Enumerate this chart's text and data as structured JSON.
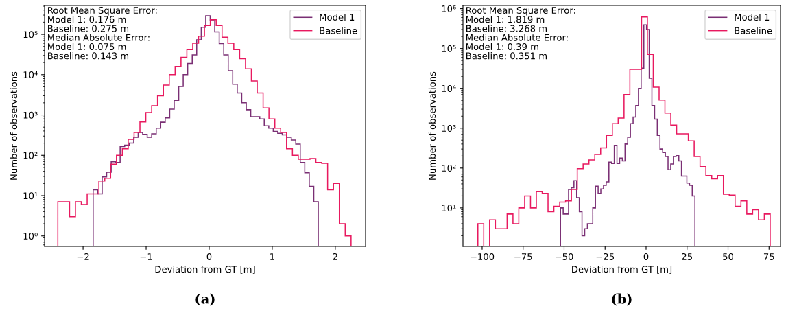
{
  "chart_data": [
    {
      "type": "histogram",
      "xlabel": "Deviation from GT [m]",
      "ylabel": "Number of observations",
      "log": "y",
      "legend": "top right",
      "grid": false,
      "bins": [
        -1.84,
        -1.769,
        -1.697,
        -1.626,
        -1.554,
        -1.483,
        -1.412,
        -1.34,
        -1.269,
        -1.197,
        -1.126,
        -1.055,
        -0.983,
        -0.912,
        -0.84,
        -0.769,
        -0.698,
        -0.626,
        -0.555,
        -0.483,
        -0.412,
        -0.341,
        -0.269,
        -0.198,
        -0.126,
        -0.055,
        0.016,
        0.088,
        0.159,
        0.231,
        0.302,
        0.373,
        0.445,
        0.516,
        0.588,
        0.659,
        0.73,
        0.802,
        0.873,
        0.945,
        1.016,
        1.087,
        1.159,
        1.23,
        1.302,
        1.373,
        1.444,
        1.516,
        1.587,
        1.659,
        1.73
      ],
      "xlim": [
        -2.61,
        2.48
      ],
      "xticks": [
        {
          "value": -2,
          "label": "−2"
        },
        {
          "value": -1,
          "label": "−1"
        },
        0,
        1,
        2
      ],
      "ylim": [
        0.55,
        520000
      ],
      "yticks": [
        {
          "value": 1,
          "label": "10⁰"
        },
        {
          "value": 10,
          "label": "10¹"
        },
        {
          "value": 100,
          "label": "10²"
        },
        {
          "value": 1000,
          "label": "10³"
        },
        {
          "value": 10000,
          "label": "10⁴"
        },
        {
          "value": 100000,
          "label": "10⁵"
        }
      ],
      "annotations": [
        "Root Mean Square Error:\nModel 1: 0.176 m\nBaseline: 0.275 m\nMedian Absolute Error:\nModel 1: 0.075 m\nBaseline: 0.143 m",
        "(a)"
      ],
      "series": [
        {
          "name": "Model 1",
          "color": "#7a2f74",
          "values": [
            14,
            11,
            29,
            38,
            69,
            66,
            165,
            178,
            200,
            280,
            370,
            330,
            280,
            340,
            470,
            660,
            850,
            1400,
            2300,
            5100,
            10000,
            19000,
            31000,
            73000,
            150000,
            290000,
            220000,
            115000,
            59000,
            31000,
            12500,
            5800,
            3500,
            2000,
            1350,
            910,
            910,
            800,
            540,
            470,
            390,
            350,
            320,
            280,
            240,
            190,
            66,
            37,
            17,
            7
          ]
        },
        {
          "name": "Baseline",
          "color": "#e8195f",
          "bins": [
            -2.4,
            -2.307,
            -2.214,
            -2.121,
            -2.028,
            -1.935,
            -1.842,
            -1.749,
            -1.656,
            -1.563,
            -1.47,
            -1.377,
            -1.284,
            -1.191,
            -1.098,
            -1.005,
            -0.912,
            -0.819,
            -0.726,
            -0.633,
            -0.54,
            -0.447,
            -0.354,
            -0.261,
            -0.168,
            -0.075,
            0.018,
            0.111,
            0.204,
            0.297,
            0.39,
            0.483,
            0.576,
            0.669,
            0.762,
            0.855,
            0.948,
            1.041,
            1.134,
            1.227,
            1.32,
            1.413,
            1.506,
            1.599,
            1.692,
            1.785,
            1.878,
            1.971,
            2.064,
            2.157,
            2.25
          ],
          "values": [
            7,
            7,
            3,
            7,
            6,
            11,
            11,
            23,
            27,
            60,
            100,
            145,
            250,
            370,
            670,
            1150,
            1700,
            3000,
            5500,
            10000,
            16000,
            27000,
            42000,
            60000,
            90000,
            165000,
            230000,
            165000,
            85000,
            60000,
            42000,
            25000,
            14000,
            7000,
            3500,
            1500,
            800,
            470,
            370,
            145,
            100,
            80,
            80,
            83,
            66,
            63,
            14,
            20,
            2,
            1
          ]
        }
      ]
    },
    {
      "type": "histogram",
      "xlabel": "Deviation from GT [m]",
      "ylabel": "Number of observations",
      "log": "y",
      "legend": "top right",
      "grid": false,
      "bins": [
        -52.2,
        -50.56,
        -48.92,
        -47.28,
        -45.64,
        -44.0,
        -42.36,
        -40.72,
        -39.08,
        -37.44,
        -35.8,
        -34.16,
        -32.52,
        -30.88,
        -29.24,
        -27.6,
        -25.96,
        -24.32,
        -22.68,
        -21.04,
        -19.4,
        -17.76,
        -16.12,
        -14.48,
        -12.84,
        -11.2,
        -9.56,
        -7.92,
        -6.28,
        -4.64,
        -3.0,
        -1.36,
        0.28,
        1.92,
        3.56,
        5.2,
        6.84,
        8.48,
        10.12,
        11.76,
        13.4,
        15.04,
        16.68,
        18.32,
        19.96,
        21.6,
        23.24,
        24.88,
        26.52,
        28.16,
        29.8
      ],
      "xlim": [
        -111.7,
        82.0
      ],
      "xticks": [
        {
          "value": -100,
          "label": "−100"
        },
        {
          "value": -75,
          "label": "−75"
        },
        {
          "value": -50,
          "label": "−50"
        },
        {
          "value": -25,
          "label": "−25"
        },
        0,
        25,
        50,
        75
      ],
      "ylim": [
        1.08,
        1200000
      ],
      "yticks": [
        {
          "value": 10,
          "label": "10¹"
        },
        {
          "value": 100,
          "label": "10²"
        },
        {
          "value": 1000,
          "label": "10³"
        },
        {
          "value": 10000,
          "label": "10⁴"
        },
        {
          "value": 100000,
          "label": "10⁵"
        },
        {
          "value": 1000000,
          "label": "10⁶"
        }
      ],
      "annotations": [
        "Root Mean Square Error:\nModel 1: 1.819 m\nBaseline: 3.268 m\nMedian Absolute Error:\nModel 1: 0.39 m\nBaseline: 0.351 m",
        "(b)"
      ],
      "series": [
        {
          "name": "Model 1",
          "color": "#7a2f74",
          "values": [
            10,
            7,
            7,
            29,
            32,
            48,
            18,
            8,
            2,
            3,
            4,
            4,
            10,
            35,
            23,
            30,
            37,
            45,
            141,
            130,
            370,
            130,
            178,
            150,
            400,
            590,
            1300,
            1900,
            3700,
            10000,
            32000,
            390000,
            300000,
            18000,
            3700,
            1700,
            660,
            300,
            245,
            195,
            91,
            126,
            195,
            205,
            150,
            63,
            63,
            42,
            37,
            20
          ]
        },
        {
          "name": "Baseline",
          "color": "#e8195f",
          "bins": [
            -102.6,
            -99.03,
            -95.47,
            -91.9,
            -88.34,
            -84.77,
            -81.2,
            -77.64,
            -74.07,
            -70.51,
            -66.94,
            -63.37,
            -59.81,
            -56.24,
            -52.68,
            -49.11,
            -45.54,
            -41.98,
            -38.41,
            -34.85,
            -31.28,
            -27.71,
            -24.15,
            -20.58,
            -17.02,
            -13.45,
            -9.88,
            -6.32,
            -2.75,
            0.81,
            4.38,
            7.95,
            11.51,
            15.08,
            18.64,
            22.21,
            25.78,
            29.34,
            32.91,
            36.47,
            40.04,
            43.61,
            47.17,
            50.74,
            54.3,
            57.87,
            61.44,
            65.0,
            68.57,
            72.13,
            75.7
          ],
          "values": [
            4,
            null,
            5,
            3,
            3,
            7,
            4,
            10,
            20,
            10,
            26,
            23,
            8,
            11,
            14,
            15,
            29,
            96,
            126,
            160,
            220,
            320,
            660,
            1300,
            1800,
            7000,
            30000,
            30000,
            620000,
            71000,
            10700,
            5100,
            2400,
            1200,
            720,
            720,
            480,
            195,
            108,
            65,
            54,
            65,
            22,
            21,
            11,
            15,
            7,
            9,
            5,
            7
          ]
        }
      ]
    }
  ]
}
